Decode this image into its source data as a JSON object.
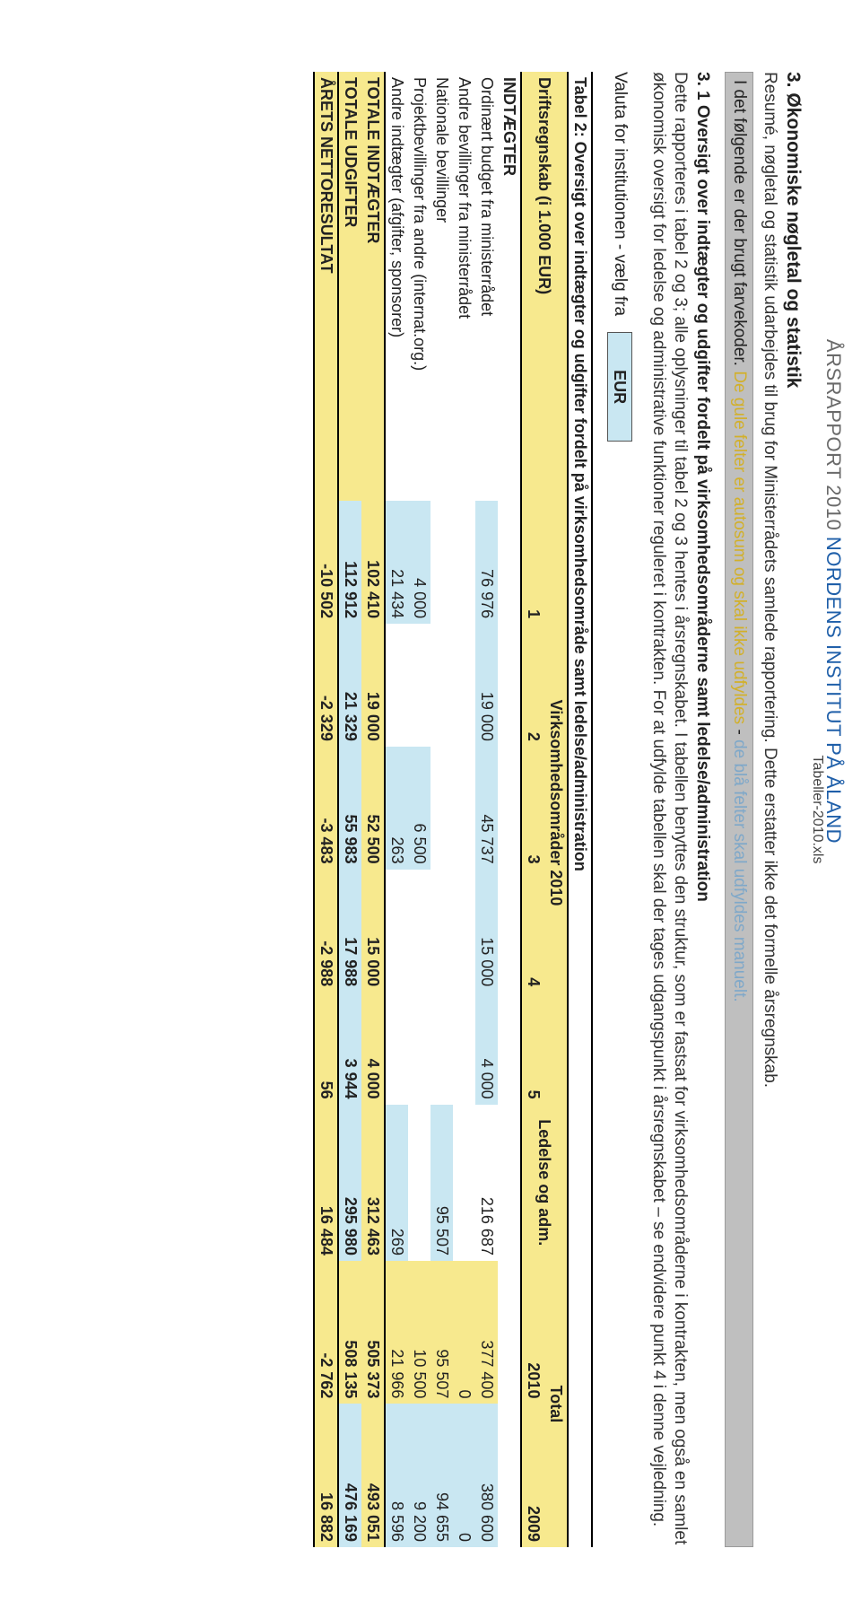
{
  "doc_header": {
    "year_label": "ÅRSRAPPORT 2010",
    "institute": " NORDENS INSTITUT PÅ ÅLAND"
  },
  "source_file": "Tabeller-2010.xls",
  "section3": {
    "title": "3. Økonomiske nøgletal og statistik",
    "subtitle": "Resumé, nøgletal og statistik udarbejdes til brug for Ministerrådets samlede rapportering. Dette erstatter ikke det formelle årsregnskab."
  },
  "info_bar": {
    "lead": "I det følgende er der brugt farvekoder. ",
    "yellow": "De gule felter er autosum og skal ikke udfyldes",
    "sep": " - ",
    "blue": "de blå felter skal udfyldes manuelt.",
    "background": "#bfbfbf"
  },
  "section31": {
    "title": "3. 1 Oversigt over indtægter og udgifter fordelt på virksomhedsområderne samt ledelse/administration",
    "body": "Dette rapporteres i tabel 2 og 3; alle oplysninger til tabel 2 og 3 hentes i årsregnskabet. I tabellen benyttes den struktur, som er fastsat for virksomhedsområderne i kontrakten, men også en samlet økonomisk oversigt for ledelse og administrative funktioner reguleret i kontrakten. For at udfylde tabellen skal der tages udgangspunkt i årsregnskabet – se endvidere punkt 4 i denne vejledning."
  },
  "valuta": {
    "label": "Valuta for institutionen - vælg fra",
    "value": "EUR"
  },
  "table2": {
    "title": "Tabel 2: Oversigt over indtægter og udgifter fordelt på virksomhedsområde samt ledelse/administration",
    "row_drift": "Driftsregnskab (i 1.000 EUR)",
    "hdr_virk": "Virksomhedsområder 2010",
    "hdr_led": "Ledelse og adm.",
    "hdr_total": "Total",
    "cols_nums": [
      "1",
      "2",
      "3",
      "4",
      "5"
    ],
    "cols_years": [
      "2010",
      "2009"
    ],
    "indt_label": "INDTÆGTER",
    "rows": [
      {
        "label": "Ordinært budget fra ministerrådet",
        "cells": [
          "76 976",
          "19 000",
          "45 737",
          "15 000",
          "4 000",
          "216 687",
          "377 400",
          "380 600"
        ],
        "blue_idx": [
          0,
          1,
          2,
          3,
          4
        ],
        "last_blue": true
      },
      {
        "label": "Andre bevillinger fra ministerrådet",
        "cells": [
          "",
          "",
          "",
          "",
          "",
          "",
          "0",
          "0"
        ],
        "blue_idx": [],
        "last_blue": true
      },
      {
        "label": "Nationale bevillinger",
        "cells": [
          "",
          "",
          "",
          "",
          "",
          "95 507",
          "95 507",
          "94 655"
        ],
        "blue_idx": [
          5
        ],
        "last_blue": true
      },
      {
        "label": "Projektbevillinger fra andre (internat.org.)",
        "cells": [
          "4 000",
          "",
          "6 500",
          "",
          "",
          "",
          "10 500",
          "9 200"
        ],
        "blue_idx": [
          0,
          2
        ],
        "last_blue": true
      },
      {
        "label": "Andre indtægter (afgifter, sponsorer)",
        "cells": [
          "21 434",
          "",
          "263",
          "",
          "",
          "269",
          "21 966",
          "8 596"
        ],
        "blue_idx": [
          0,
          2,
          5
        ],
        "last_blue": true
      }
    ],
    "totals": [
      {
        "label": "TOTALE INDTÆGTER",
        "cells": [
          "102 410",
          "19 000",
          "52 500",
          "15 000",
          "4 000",
          "312 463",
          "505 373",
          "493 051"
        ]
      },
      {
        "label": "TOTALE UDGIFTER",
        "cells": [
          "112 912",
          "21 329",
          "55 983",
          "17 988",
          "3 944",
          "295 980",
          "508 135",
          "476 169"
        ]
      }
    ],
    "netto": {
      "label": "ÅRETS NETTORESULTAT",
      "cells": [
        "-10 502",
        "-2 329",
        "-3 483",
        "-2 988",
        "56",
        "16 484",
        "-2 762",
        "16 882"
      ]
    }
  },
  "colors": {
    "blue_fill": "#c9e7f2",
    "yellow_fill": "#f7e98e",
    "grey_fill": "#bfbfbf",
    "header_blue_text": "#1f5fa9",
    "header_grey_text": "#6a6a6a"
  }
}
